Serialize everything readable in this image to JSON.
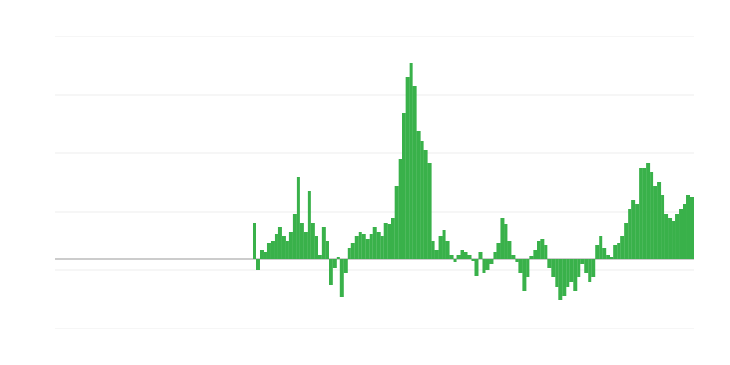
{
  "chart_data": {
    "type": "bar",
    "color": "#39b14a",
    "grid": true,
    "ylim": [
      -76,
      244
    ],
    "yticks": [
      244,
      180,
      116,
      52,
      -12,
      -76
    ],
    "values": [
      40,
      -12,
      10,
      8,
      18,
      20,
      28,
      35,
      25,
      20,
      30,
      50,
      90,
      40,
      30,
      75,
      40,
      25,
      5,
      35,
      20,
      -28,
      -10,
      2,
      -42,
      -15,
      12,
      18,
      25,
      30,
      28,
      22,
      28,
      35,
      30,
      25,
      40,
      38,
      45,
      80,
      110,
      160,
      200,
      215,
      190,
      140,
      130,
      120,
      105,
      20,
      10,
      25,
      32,
      20,
      5,
      -3,
      5,
      10,
      8,
      5,
      -2,
      -18,
      8,
      -15,
      -12,
      -5,
      8,
      18,
      45,
      38,
      20,
      5,
      -3,
      -15,
      -35,
      -20,
      3,
      10,
      20,
      22,
      15,
      -10,
      -20,
      -30,
      -45,
      -40,
      -30,
      -25,
      -35,
      -20,
      -5,
      -15,
      -25,
      -20,
      15,
      25,
      12,
      5,
      2,
      15,
      18,
      25,
      40,
      55,
      65,
      60,
      100,
      100,
      105,
      95,
      80,
      85,
      70,
      50,
      45,
      42,
      50,
      55,
      60,
      70,
      68
    ]
  }
}
